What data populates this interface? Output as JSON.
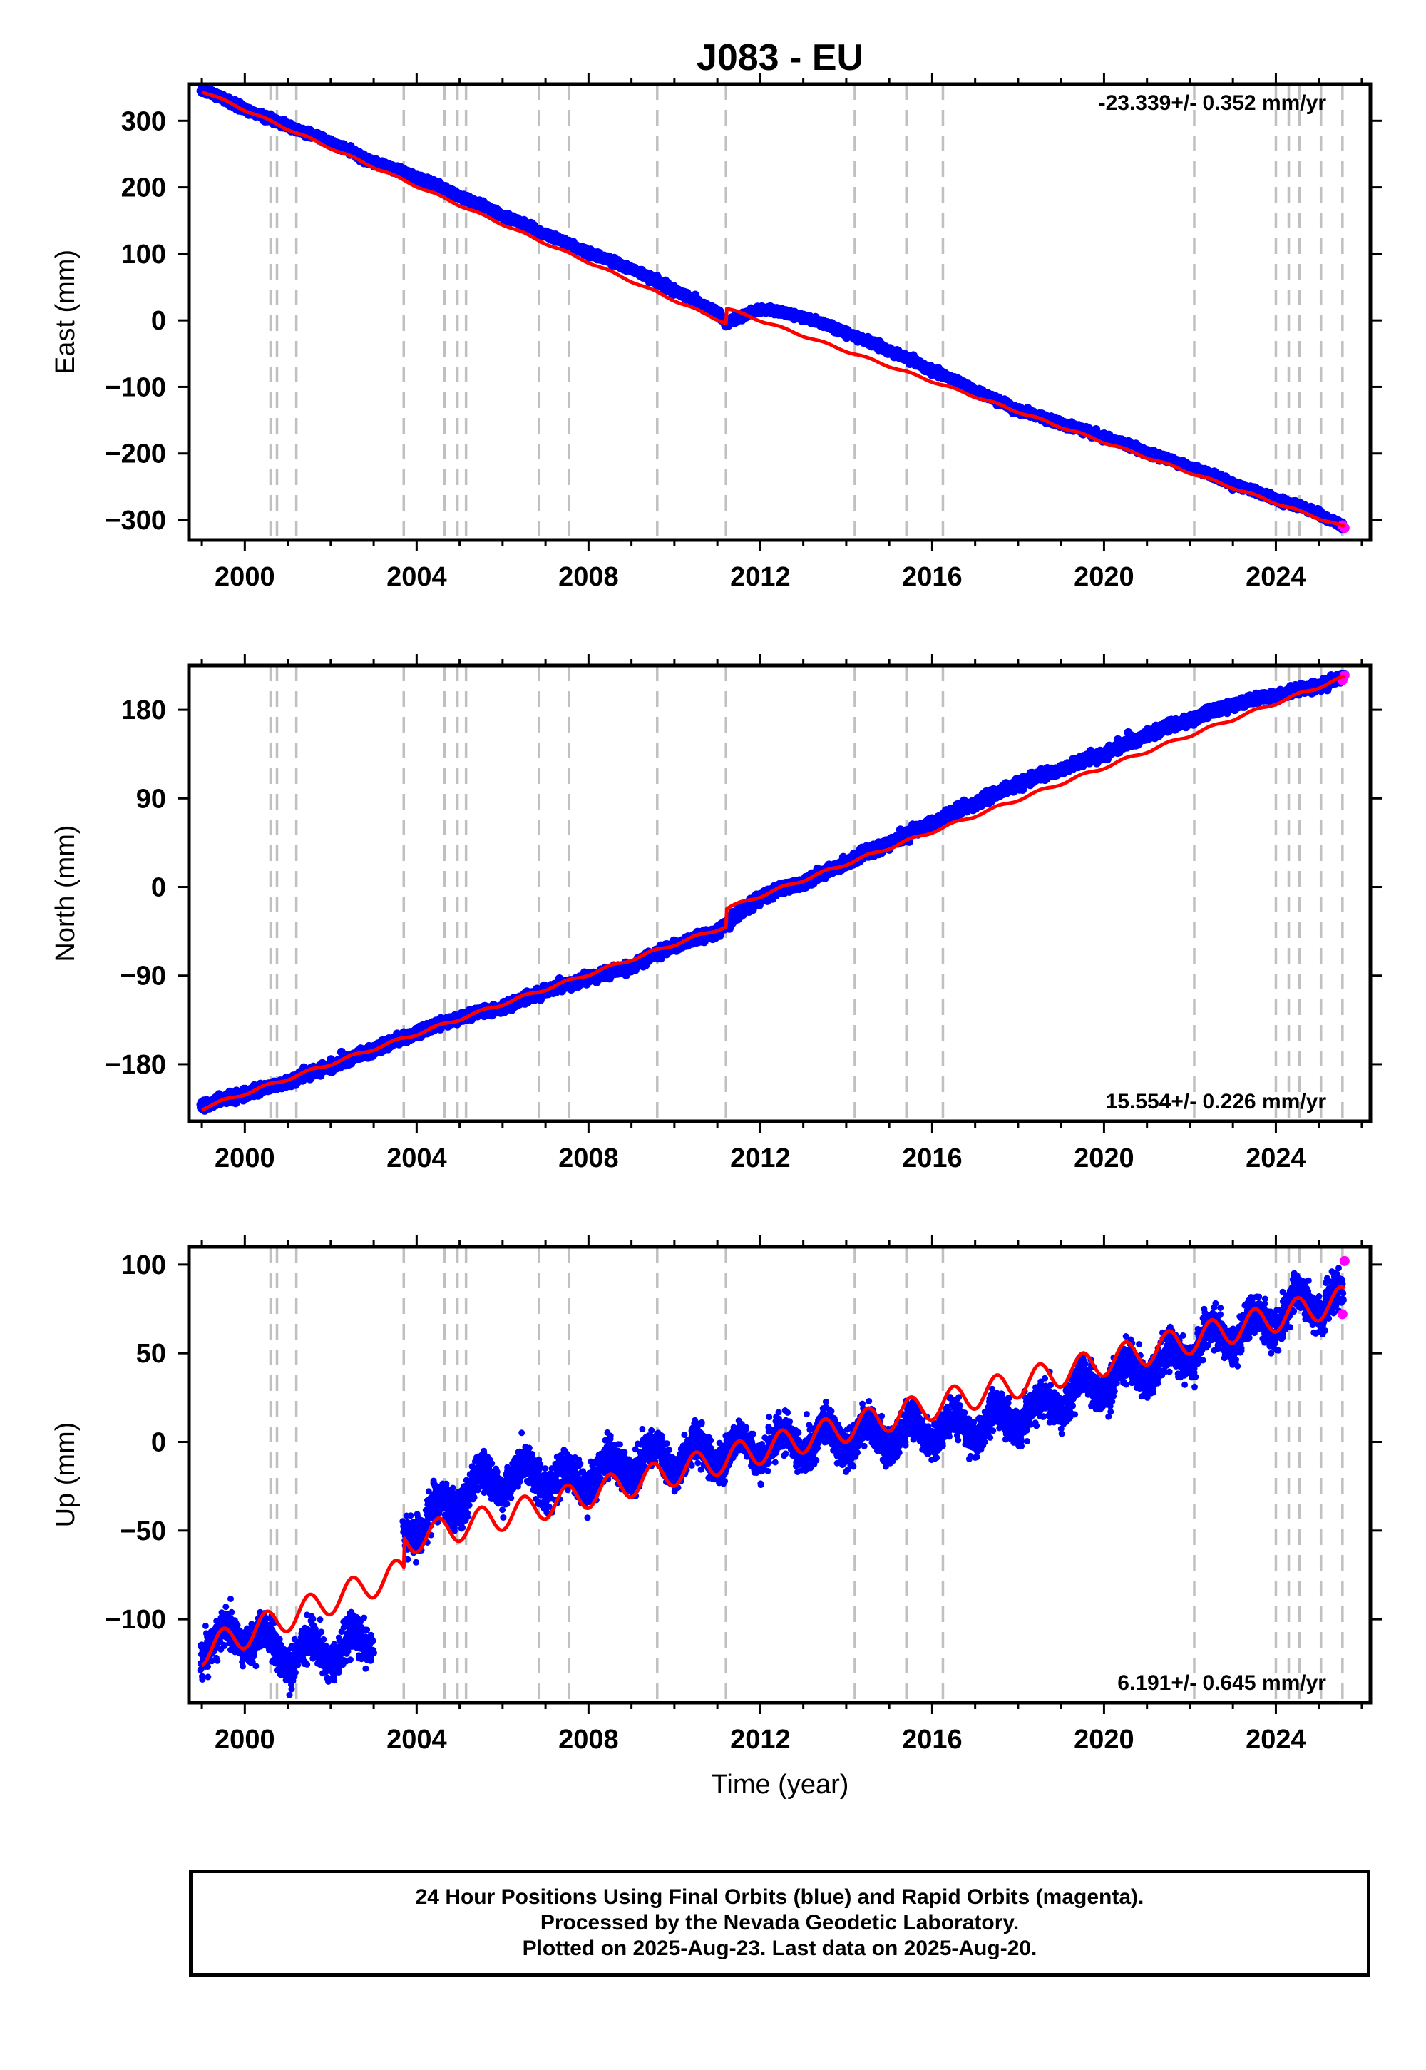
{
  "figure": {
    "title": "J083 - EU",
    "xlabel": "Time (year)",
    "x_ticks": [
      2000,
      2004,
      2008,
      2012,
      2016,
      2020,
      2024
    ],
    "xlim": [
      1998.7,
      2026.2
    ],
    "colors": {
      "final_orbits": "#0000ff",
      "rapid_orbits": "#ff00ff",
      "model": "#ff0000",
      "step_lines": "#c0c0c0"
    },
    "step_markers": [
      2000.6,
      2000.75,
      2001.2,
      2003.7,
      2004.65,
      2004.95,
      2005.15,
      2006.85,
      2007.55,
      2009.6,
      2011.2,
      2014.2,
      2015.4,
      2016.25,
      2022.1,
      2024.0,
      2024.3,
      2024.55,
      2025.05,
      2025.55
    ]
  },
  "chart_data": [
    {
      "type": "scatter",
      "component": "east",
      "ylabel": "East (mm)",
      "rate_label": "-23.339+/- 0.352 mm/yr",
      "ylim": [
        -330,
        355
      ],
      "y_ticks": [
        300,
        200,
        100,
        0,
        -100,
        -200,
        -300
      ],
      "y_tick_labels": [
        "300",
        "200",
        "100",
        "0",
        "−100",
        "−200",
        "−300"
      ],
      "series": [
        {
          "name": "Final Orbits (blue)",
          "x": [
            1999.0,
            2000.0,
            2001.0,
            2002.0,
            2003.0,
            2004.0,
            2005.0,
            2006.0,
            2007.0,
            2008.0,
            2009.0,
            2010.0,
            2011.0,
            2011.2,
            2012.0,
            2013.0,
            2014.0,
            2015.0,
            2016.0,
            2017.0,
            2018.0,
            2019.0,
            2020.0,
            2021.0,
            2022.0,
            2023.0,
            2024.0,
            2025.0,
            2025.55
          ],
          "y": [
            348,
            318,
            292,
            268,
            238,
            215,
            188,
            158,
            130,
            102,
            78,
            45,
            12,
            -5,
            18,
            5,
            -18,
            -45,
            -75,
            -105,
            -135,
            -155,
            -175,
            -198,
            -220,
            -245,
            -268,
            -290,
            -310
          ]
        },
        {
          "name": "Rapid Orbits (magenta)",
          "x": [
            2025.55,
            2025.6
          ],
          "y": [
            -308,
            -312
          ]
        }
      ],
      "model": {
        "x": [
          1999.0,
          2011.2,
          2011.21,
          2025.6
        ],
        "y": [
          345,
          -4,
          18,
          -311
        ]
      }
    },
    {
      "type": "scatter",
      "component": "north",
      "ylabel": "North (mm)",
      "rate_label": "15.554+/- 0.226 mm/yr",
      "ylim": [
        -238,
        225
      ],
      "y_ticks": [
        180,
        90,
        0,
        -90,
        -180
      ],
      "y_tick_labels": [
        "180",
        "90",
        "0",
        "−90",
        "−180"
      ],
      "series": [
        {
          "name": "Final Orbits (blue)",
          "x": [
            1999.0,
            2000.0,
            2001.0,
            2002.0,
            2003.0,
            2004.0,
            2005.0,
            2006.0,
            2007.0,
            2008.0,
            2009.0,
            2010.0,
            2011.0,
            2011.2,
            2012.0,
            2013.0,
            2014.0,
            2015.0,
            2016.0,
            2017.0,
            2018.0,
            2019.0,
            2020.0,
            2021.0,
            2022.0,
            2023.0,
            2024.0,
            2025.0,
            2025.55
          ],
          "y": [
            -222,
            -210,
            -198,
            -182,
            -165,
            -148,
            -133,
            -122,
            -105,
            -93,
            -80,
            -60,
            -45,
            -38,
            -10,
            5,
            25,
            45,
            65,
            85,
            105,
            120,
            135,
            155,
            170,
            185,
            195,
            205,
            212
          ]
        },
        {
          "name": "Rapid Orbits (magenta)",
          "x": [
            2025.55,
            2025.6
          ],
          "y": [
            210,
            215
          ]
        }
      ],
      "model": {
        "x": [
          1999.0,
          2011.2,
          2011.21,
          2025.6
        ],
        "y": [
          -225,
          -40,
          -22,
          213
        ]
      }
    },
    {
      "type": "scatter",
      "component": "up",
      "ylabel": "Up (mm)",
      "rate_label": "6.191+/- 0.645 mm/yr",
      "ylim": [
        -147,
        110
      ],
      "y_ticks": [
        100,
        50,
        0,
        -50,
        -100
      ],
      "y_tick_labels": [
        "100",
        "50",
        "0",
        "−50",
        "−100"
      ],
      "series": [
        {
          "name": "Final Orbits (blue)",
          "x": [
            1999.0,
            2000.0,
            2001.0,
            2002.0,
            2002.95,
            2003.75,
            2004.5,
            2005.5,
            2006.5,
            2007.5,
            2008.5,
            2009.5,
            2010.5,
            2011.5,
            2012.5,
            2013.5,
            2014.5,
            2015.5,
            2016.5,
            2017.5,
            2018.5,
            2019.5,
            2020.5,
            2021.5,
            2022.5,
            2023.5,
            2024.5,
            2025.55
          ],
          "y": [
            -115,
            -108,
            -120,
            -118,
            -112,
            -50,
            -40,
            -22,
            -18,
            -22,
            -15,
            -10,
            -8,
            -4,
            -2,
            2,
            3,
            5,
            8,
            12,
            18,
            30,
            38,
            45,
            58,
            65,
            78,
            80
          ]
        },
        {
          "name": "Rapid Orbits (magenta)",
          "x": [
            2025.55,
            2025.6
          ],
          "y": [
            72,
            102
          ]
        }
      ],
      "model": {
        "x": [
          1999.0,
          2003.7,
          2003.71,
          2025.6
        ],
        "y": [
          -118,
          -73,
          -56,
          80
        ]
      }
    }
  ],
  "caption": {
    "line1": "24 Hour Positions Using Final Orbits (blue) and Rapid Orbits (magenta).",
    "line2": "Processed by the Nevada Geodetic Laboratory.",
    "line3": "Plotted on 2025-Aug-23. Last data on 2025-Aug-20."
  }
}
